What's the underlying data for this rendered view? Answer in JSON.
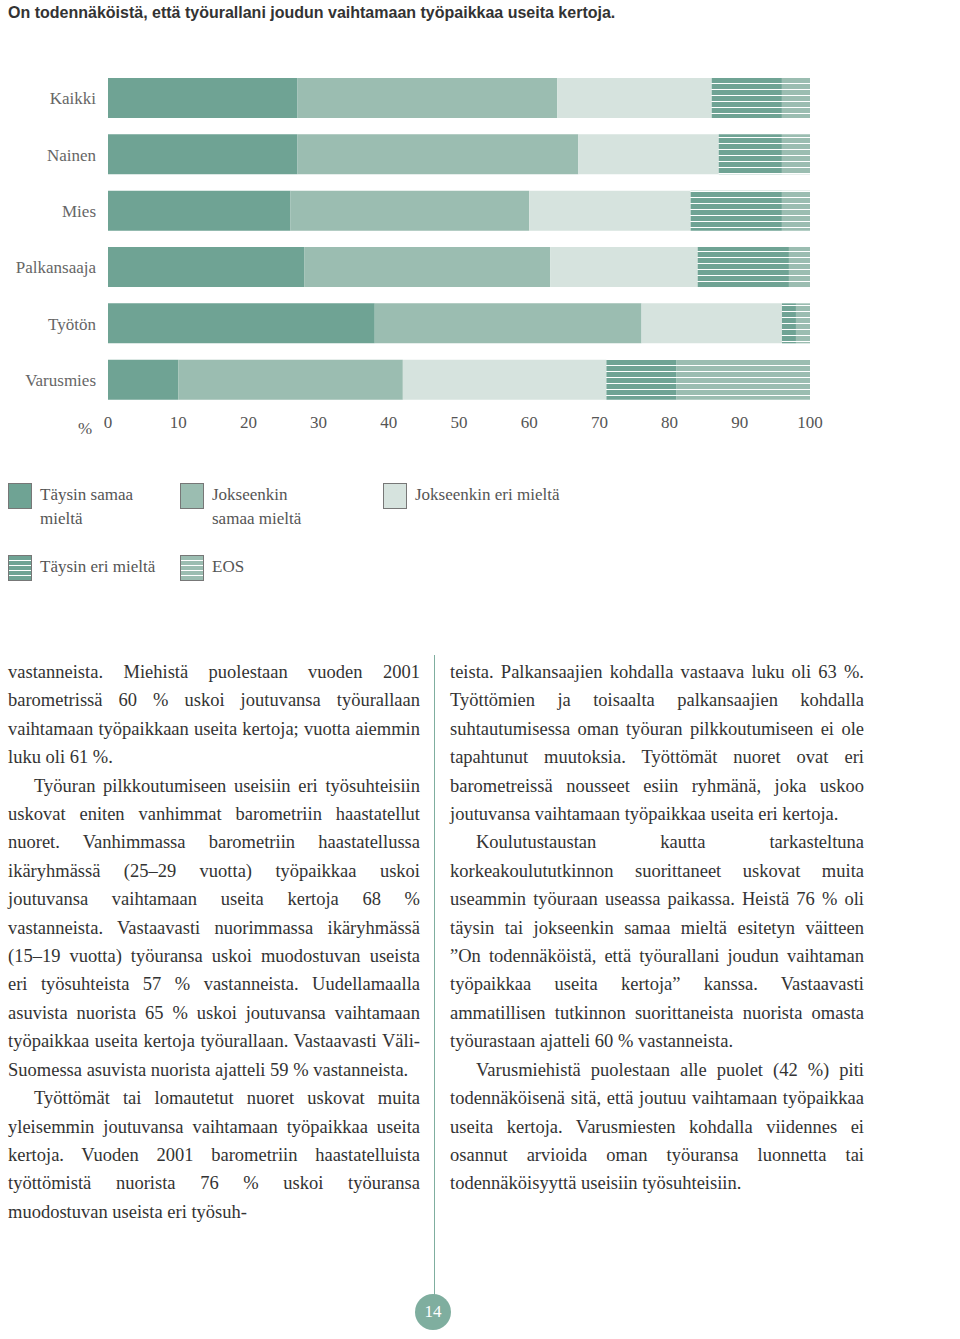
{
  "chart_data": {
    "type": "bar",
    "orientation": "horizontal",
    "stacked": true,
    "title": "On todennäköistä, että työurallani joudun vaihtamaan työpaikkaa useita kertoja.",
    "xlabel": "%",
    "categories": [
      "Kaikki",
      "Nainen",
      "Mies",
      "Palkansaaja",
      "Työtön",
      "Varusmies"
    ],
    "series": [
      {
        "name": "Täysin samaa mieltä",
        "color": "#6fa394",
        "values": [
          27,
          27,
          26,
          28,
          38,
          10
        ]
      },
      {
        "name": "Jokseenkin samaa mieltä",
        "color": "#9bbdb1",
        "values": [
          37,
          40,
          34,
          35,
          38,
          32
        ]
      },
      {
        "name": "Jokseenkin eri mieltä",
        "color": "#d6e3de",
        "values": [
          22,
          20,
          23,
          21,
          20,
          29
        ]
      },
      {
        "name": "Täysin eri mieltä",
        "color": "#6fa394",
        "values": [
          10,
          9,
          13,
          13,
          2,
          10
        ]
      },
      {
        "name": "EOS",
        "color": "#9bbdb1",
        "values": [
          4,
          4,
          4,
          3,
          2,
          19
        ]
      }
    ],
    "xlim": [
      0,
      100
    ],
    "xticks": [
      0,
      10,
      20,
      30,
      40,
      50,
      60,
      70,
      80,
      90,
      100
    ],
    "grid": false,
    "legend": "bottom"
  },
  "text_columns": [
    [
      "vastanneista. Miehistä puolestaan vuoden 2001 barometrissä 60 % uskoi joutuvansa työurallaan vaihtamaan työpaikkaan useita kertoja; vuotta aiemmin luku oli 61 %.",
      "Työuran pilkkoutumiseen useisiin eri työsuhteisiin uskovat eniten vanhimmat barometriin haastatellut nuoret. Vanhimmassa barometriin haastatellussa ikäryhmässä (25–29 vuotta) työpaikkaa uskoi joutuvansa vaihtamaan useita kertoja 68 % vastanneista. Vastaavasti nuorimmassa ikäryhmässä (15–19 vuotta) työuransa uskoi muodostuvan useista eri työsuhteista 57 % vastanneista. Uudellamaalla asuvista nuorista 65 % uskoi joutuvansa vaihtamaan työpaikkaa useita kertoja työurallaan. Vastaavasti Väli-Suomessa asuvista nuorista ajatteli 59 % vastanneista.",
      "Työttömät tai lomautetut nuoret uskovat muita yleisemmin joutuvansa vaihtamaan työpaikkaa useita kertoja. Vuoden 2001 barometriin haastatelluista työttömistä nuorista 76 % uskoi työuransa muodostuvan useista eri työsuh-"
    ],
    [
      "teista. Palkansaajien kohdalla vastaava luku oli 63 %. Työttömien ja toisaalta palkansaajien kohdalla suhtautumisessa oman työuran pilkkoutumiseen ei ole tapahtunut muutoksia. Työttömät nuoret ovat eri barometreissä nousseet esiin ryhmänä, joka uskoo joutuvansa vaihtamaan työpaikkaa useita eri kertoja.",
      "Koulutustaustan kautta tarkasteltuna korkeakoulututkinnon suorittaneet uskovat muita useammin työuraan useassa paikassa. Heistä 76 % oli täysin tai jokseenkin samaa mieltä esitetyn väitteen ”On todennäköistä, että työurallani joudun vaihtaman työpaikkaa useita kertoja” kanssa. Vastaavasti ammatillisen tutkinnon suorittaneista nuorista omasta työurastaan ajatteli 60 % vastanneista.",
      "Varusmiehistä puolestaan alle puolet (42 %) piti todennäköisenä sitä, että joutuu vaihtamaan työpaikkaa useita kertoja. Varusmiesten kohdalla viidennes ei osannut arvioida oman työuransa luonnetta tai todennäköisyyttä useisiin työsuhteisiin."
    ]
  ],
  "page_number": "14"
}
